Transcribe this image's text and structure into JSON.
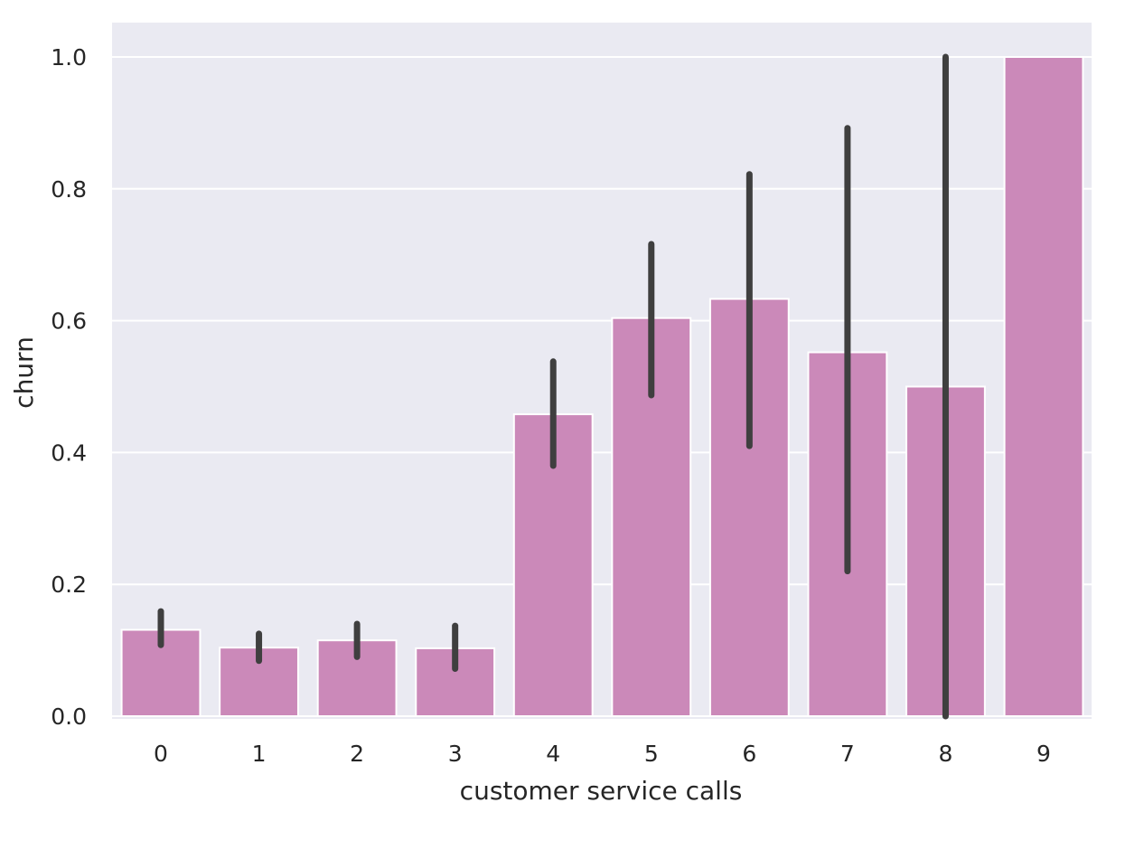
{
  "chart_data": {
    "type": "bar",
    "title": "",
    "xlabel": "customer service calls",
    "ylabel": "churn",
    "categories": [
      "0",
      "1",
      "2",
      "3",
      "4",
      "5",
      "6",
      "7",
      "8",
      "9"
    ],
    "values": [
      0.131,
      0.104,
      0.115,
      0.103,
      0.458,
      0.604,
      0.633,
      0.552,
      0.5,
      1.0
    ],
    "error_low": [
      0.108,
      0.084,
      0.09,
      0.072,
      0.38,
      0.487,
      0.41,
      0.22,
      0.0,
      1.0
    ],
    "error_high": [
      0.159,
      0.125,
      0.14,
      0.137,
      0.538,
      0.716,
      0.822,
      0.892,
      1.0,
      1.0
    ],
    "ylim": [
      0,
      1.05
    ],
    "yticks": [
      0.0,
      0.2,
      0.4,
      0.6,
      0.8,
      1.0
    ],
    "ytick_labels": [
      "0.0",
      "0.2",
      "0.4",
      "0.6",
      "0.8",
      "1.0"
    ],
    "grid": true,
    "colors": {
      "bar": "#cb89b9",
      "error_bar": "#3f3f3f",
      "plot_background": "#eaeaf2",
      "grid": "#ffffff"
    }
  }
}
